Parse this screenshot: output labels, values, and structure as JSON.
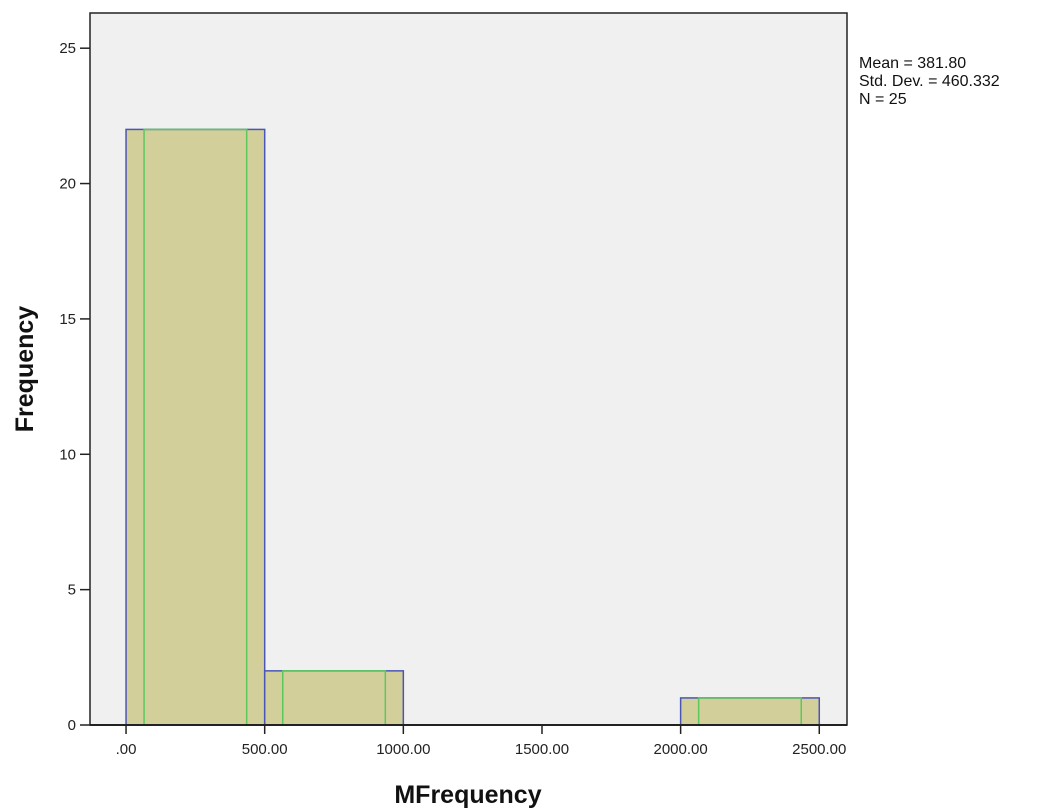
{
  "chart_data": {
    "type": "bar",
    "subtype": "histogram",
    "xlabel": "MFrequency",
    "ylabel": "Frequency",
    "bins": [
      {
        "from": 0,
        "to": 500,
        "count": 22
      },
      {
        "from": 500,
        "to": 1000,
        "count": 2
      },
      {
        "from": 1000,
        "to": 1500,
        "count": 0
      },
      {
        "from": 1500,
        "to": 2000,
        "count": 0
      },
      {
        "from": 2000,
        "to": 2500,
        "count": 1
      }
    ],
    "xlim": [
      -130,
      2600
    ],
    "ylim": [
      0,
      26.3
    ],
    "x_ticks": [
      {
        "value": 0,
        "label": ".00"
      },
      {
        "value": 500,
        "label": "500.00"
      },
      {
        "value": 1000,
        "label": "1000.00"
      },
      {
        "value": 1500,
        "label": "1500.00"
      },
      {
        "value": 2000,
        "label": "2000.00"
      },
      {
        "value": 2500,
        "label": "2500.00"
      }
    ],
    "y_ticks": [
      {
        "value": 0,
        "label": "0"
      },
      {
        "value": 5,
        "label": "5"
      },
      {
        "value": 10,
        "label": "10"
      },
      {
        "value": 15,
        "label": "15"
      },
      {
        "value": 20,
        "label": "20"
      },
      {
        "value": 25,
        "label": "25"
      }
    ],
    "stats": [
      "Mean = 381.80",
      "Std. Dev. = 460.332",
      "N = 25"
    ],
    "grid": false,
    "colors": {
      "plot_background": "#f0f0f0",
      "bar_fill": "#d3cf9b",
      "bar_edge": "#4a56b5",
      "inner_line": "#5cc85c",
      "axis": "#222222"
    }
  }
}
